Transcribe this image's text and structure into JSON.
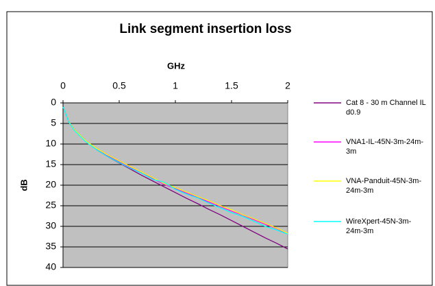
{
  "chart_data": {
    "type": "line",
    "title": "Link segment insertion loss",
    "x_label": "GHz",
    "y_label": "dB",
    "x": [
      0.001,
      0.05,
      0.1,
      0.2,
      0.3,
      0.4,
      0.5,
      0.6,
      0.7,
      0.8,
      0.9,
      1.0,
      1.1,
      1.2,
      1.3,
      1.4,
      1.5,
      1.6,
      1.7,
      1.8,
      1.9,
      2.0
    ],
    "series": [
      {
        "name": "Cat 8  - 30 m Channel IL d0.9",
        "color": "#800080",
        "values": [
          1,
          4.5,
          6.5,
          9.3,
          11.4,
          13.1,
          14.6,
          16.1,
          17.6,
          19.0,
          20.4,
          21.8,
          23.2,
          24.5,
          25.9,
          27.2,
          28.6,
          30.0,
          31.4,
          32.8,
          34.1,
          35.5
        ]
      },
      {
        "name": "VNA1-IL-45N-3m-24m-3m",
        "color": "#ff00ff",
        "values": [
          1,
          4.6,
          6.6,
          9.3,
          11.3,
          12.9,
          14.3,
          15.7,
          17.0,
          18.4,
          19.8,
          20.8,
          21.9,
          23.0,
          24.1,
          25.2,
          26.3,
          27.3,
          28.4,
          29.5,
          30.5,
          31.8
        ]
      },
      {
        "name": "VNA-Panduit-45N-3m-24m-3m",
        "color": "#ffff00",
        "values": [
          1,
          4.5,
          6.5,
          9.2,
          11.1,
          12.7,
          14.1,
          15.5,
          16.8,
          18.2,
          19.6,
          20.6,
          21.7,
          22.8,
          23.8,
          25.0,
          26.0,
          27.2,
          28.2,
          29.3,
          30.4,
          31.7
        ]
      },
      {
        "name": "WireXpert-45N-3m-24m-3m",
        "color": "#00ffff",
        "values": [
          1,
          4.6,
          6.7,
          9.4,
          11.4,
          13.1,
          14.5,
          15.9,
          17.1,
          18.6,
          19.3,
          21.0,
          22.2,
          23.1,
          24.4,
          25.5,
          26.7,
          27.6,
          28.8,
          30.0,
          30.9,
          31.9
        ]
      }
    ],
    "xlim": [
      0,
      2
    ],
    "xticks": [
      0,
      0.5,
      1,
      1.5,
      2
    ],
    "ylim": [
      0,
      40
    ],
    "yticks": [
      0,
      5,
      10,
      15,
      20,
      25,
      30,
      35,
      40
    ],
    "y_inverted": true,
    "x_axis_position": "top",
    "grid": true,
    "plot_background": "#c0c0c0",
    "legend": "right"
  }
}
